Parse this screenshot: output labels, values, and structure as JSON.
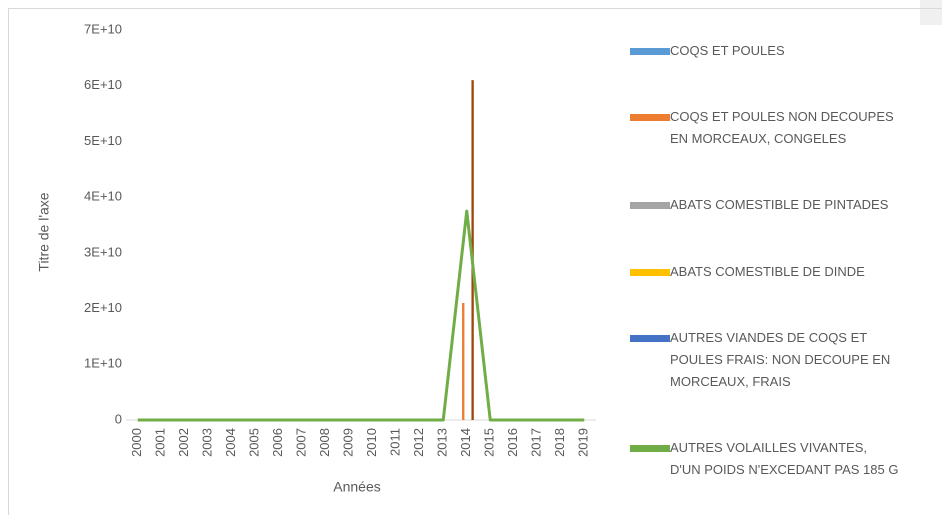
{
  "chart_data": {
    "type": "combo",
    "y_axis_label": "Titre de l'axe",
    "x_axis_label": "Années",
    "categories": [
      "2000",
      "2001",
      "2002",
      "2003",
      "2004",
      "2005",
      "2006",
      "2007",
      "2008",
      "2009",
      "2010",
      "2011",
      "2012",
      "2013",
      "2014",
      "2015",
      "2016",
      "2017",
      "2018",
      "2019"
    ],
    "ylim": [
      0,
      70000000000
    ],
    "yticks": [
      {
        "value": 0,
        "label": "0"
      },
      {
        "value": 10000000000,
        "label": "1E+10"
      },
      {
        "value": 20000000000,
        "label": "2E+10"
      },
      {
        "value": 30000000000,
        "label": "3E+10"
      },
      {
        "value": 40000000000,
        "label": "4E+10"
      },
      {
        "value": 50000000000,
        "label": "5E+10"
      },
      {
        "value": 60000000000,
        "label": "6E+10"
      },
      {
        "value": 70000000000,
        "label": "7E+10"
      }
    ],
    "series": [
      {
        "name": "COQS ET POULES",
        "color": "#5b9bd5",
        "type": "bar",
        "values": [
          0,
          0,
          0,
          0,
          0,
          0,
          0,
          0,
          0,
          0,
          0,
          0,
          0,
          0,
          0,
          0,
          0,
          0,
          0,
          0
        ]
      },
      {
        "name": "COQS ET POULES NON DECOUPES EN MORCEAUX, CONGELES",
        "color": "#ed7d31",
        "type": "bar",
        "values": [
          0,
          0,
          0,
          0,
          0,
          0,
          0,
          0,
          0,
          0,
          0,
          0,
          0,
          0,
          21000000000,
          0,
          0,
          0,
          0,
          0
        ]
      },
      {
        "name": "ABATS COMESTIBLE DE PINTADES",
        "color": "#a5a5a5",
        "type": "bar",
        "values": [
          0,
          0,
          0,
          0,
          0,
          0,
          0,
          0,
          0,
          0,
          0,
          0,
          0,
          0,
          0,
          0,
          0,
          0,
          0,
          0
        ]
      },
      {
        "name": "ABATS COMESTIBLE DE DINDE",
        "color": "#ffc000",
        "type": "bar",
        "values": [
          0,
          0,
          0,
          0,
          0,
          0,
          0,
          0,
          0,
          0,
          0,
          0,
          0,
          0,
          0,
          0,
          0,
          0,
          0,
          0
        ]
      },
      {
        "name": "AUTRES VIANDES DE COQS ET POULES FRAIS: NON DECOUPE EN MORCEAUX, FRAIS",
        "color": "#4472c4",
        "type": "bar",
        "values": [
          0,
          0,
          0,
          0,
          0,
          0,
          0,
          0,
          0,
          0,
          0,
          0,
          0,
          0,
          0,
          0,
          0,
          0,
          0,
          0
        ]
      },
      {
        "color": "#9e480e",
        "type": "bar",
        "values": [
          0,
          0,
          0,
          0,
          0,
          0,
          0,
          0,
          0,
          0,
          0,
          0,
          0,
          0,
          61000000000,
          0,
          0,
          0,
          0,
          0
        ]
      },
      {
        "name": "AUTRES VOLAILLES VIVANTES, D'UN POIDS N'EXCEDANT PAS 185 G",
        "color": "#70ad47",
        "type": "line",
        "values": [
          0,
          0,
          0,
          0,
          0,
          0,
          0,
          0,
          0,
          0,
          0,
          0,
          0,
          0,
          37500000000,
          0,
          0,
          0,
          0,
          0
        ]
      }
    ]
  }
}
